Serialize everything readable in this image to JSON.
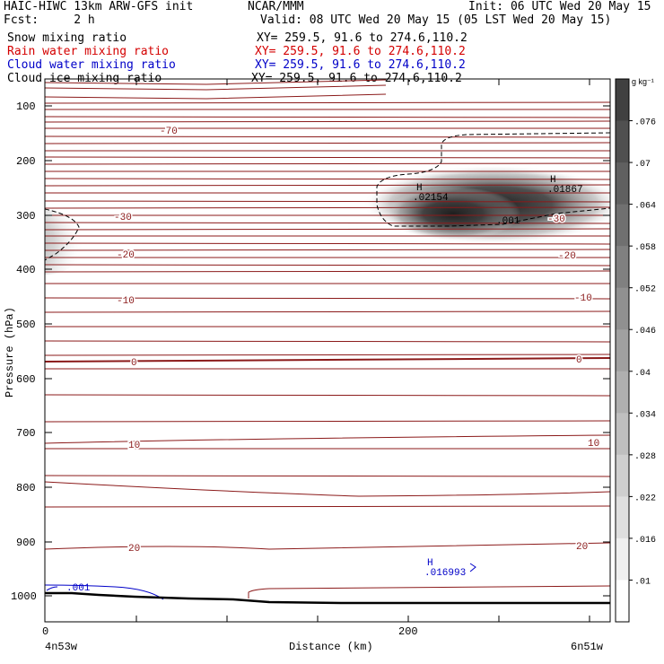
{
  "header": {
    "left_line1": "HAIC-HIWC 13km ARW-GFS init",
    "center_line1": "NCAR/MMM",
    "right_line1": "Init: 06 UTC Wed 20 May 15",
    "left_line2": "Fcst:     2 h",
    "right_line2": "Valid: 08 UTC Wed 20 May 15 (05 LST Wed 20 May 15)"
  },
  "legend": [
    {
      "name": "Snow mixing ratio",
      "xy": "XY= 259.5, 91.6 to 274.6,110.2",
      "color": "#000000"
    },
    {
      "name": "Rain water mixing ratio",
      "xy": "XY= 259.5, 91.6 to 274.6,110.2",
      "color": "#d40000"
    },
    {
      "name": "Cloud water mixing ratio",
      "xy": "XY= 259.5, 91.6 to 274.6,110.2",
      "color": "#0000c8"
    },
    {
      "name": "Cloud ice mixing ratio",
      "xy": "XY= 259.5, 91.6 to 274.6,110.2",
      "color": "#000000"
    }
  ],
  "colorbar": {
    "unit": "g kg⁻¹",
    "ticks": [
      ".076",
      ".07",
      ".064",
      ".058",
      ".052",
      ".046",
      ".04",
      ".034",
      ".028",
      ".022",
      ".016",
      ".01"
    ]
  },
  "chart_data": {
    "type": "contour",
    "ylabel": "Pressure (hPa)",
    "xlabel": "Distance (km)",
    "x_left_label": "4n53w",
    "x_right_label": "6n51w",
    "y_ticks": [
      100,
      200,
      300,
      400,
      500,
      600,
      700,
      800,
      900,
      1000
    ],
    "x_ticks": [
      0,
      200
    ],
    "ylim": [
      1050,
      50
    ],
    "xlim": [
      0,
      310
    ],
    "temperature_contours": [
      {
        "label": "-70",
        "pressure": 140
      },
      {
        "label": "-30",
        "pressure": 300
      },
      {
        "label": "-20",
        "pressure": 380
      },
      {
        "label": "-10",
        "pressure": 470
      },
      {
        "label": "0",
        "pressure": 565
      },
      {
        "label": "10",
        "pressure": 715
      },
      {
        "label": "20",
        "pressure": 910
      }
    ],
    "ice_maxima": [
      {
        "label": "H",
        "value": ".02154",
        "x": 205,
        "pressure": 270
      },
      {
        "label": "H",
        "value": ".01867",
        "x": 282,
        "pressure": 250
      }
    ],
    "cloud_ice_contour_label": ".001",
    "cloud_water_contour_label": ".001",
    "cloud_water_maximum": {
      "label": "H",
      "value": ".016993",
      "x": 212,
      "pressure": 965
    },
    "colors": {
      "isotherm": "#8b1a1a",
      "cloud_water": "#0000c8",
      "terrain": "#000000"
    }
  }
}
